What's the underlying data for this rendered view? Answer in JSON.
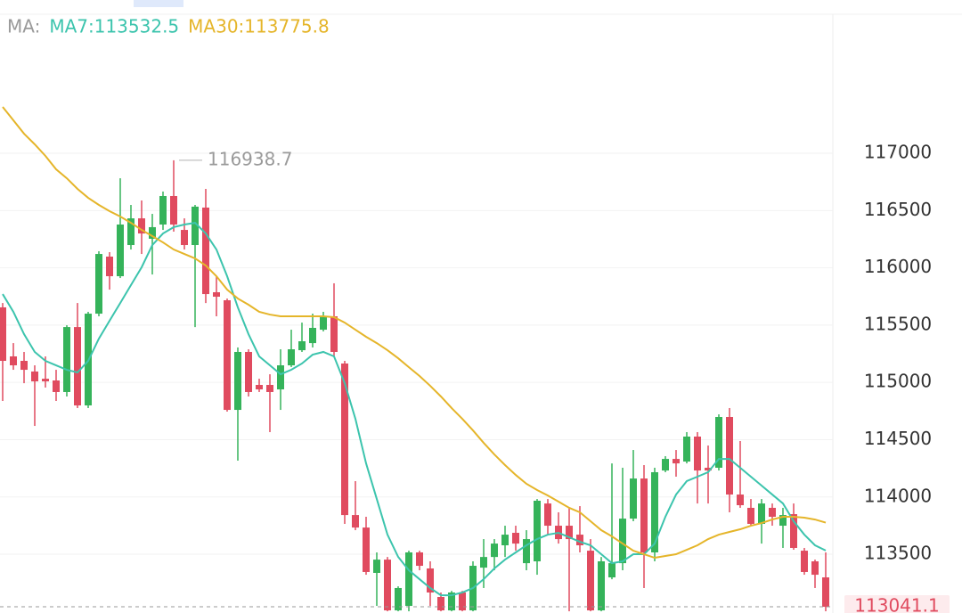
{
  "chart_data": {
    "type": "candlestick",
    "legend_title": "MA:",
    "up_color": "#35b35a",
    "down_color": "#e04b5f",
    "ylim": [
      112987,
      118338
    ],
    "yticks": [
      113500,
      114000,
      114500,
      115000,
      115500,
      116000,
      116500,
      117000
    ],
    "grid": true,
    "max_label": "116938.7",
    "last_price": 113041.1,
    "ohlc": {
      "open": [
        115655,
        115227,
        115188,
        115095,
        115032,
        115017,
        114916,
        115483,
        114799,
        115600,
        116098,
        115927,
        116199,
        116432,
        116254,
        116378,
        116627,
        116331,
        116199,
        116526,
        115787,
        115717,
        114760,
        115266,
        114978,
        114978,
        114939,
        115149,
        115281,
        115343,
        115460,
        115577,
        115165,
        113842,
        113733,
        113337,
        113453,
        113010,
        113049,
        113516,
        113376,
        113127,
        113010,
        113166,
        113010,
        113383,
        113476,
        113578,
        113687,
        113422,
        113438,
        113943,
        113749,
        113749,
        113671,
        113531,
        113010,
        113298,
        113422,
        113811,
        114161,
        113516,
        114231,
        114332,
        114309,
        114527,
        114255,
        114255,
        114698,
        114021,
        113905,
        113765,
        113905,
        113749,
        113850,
        113531,
        113438,
        113298
      ],
      "high": [
        115693,
        115343,
        115266,
        115149,
        115227,
        115110,
        115499,
        115693,
        115616,
        116145,
        116137,
        116782,
        116549,
        116588,
        116471,
        116666,
        116938.7,
        116432,
        116549,
        116689,
        115927,
        115732,
        115305,
        115289,
        115032,
        115071,
        115289,
        115460,
        115522,
        115600,
        115616,
        115865,
        115188,
        114138,
        113827,
        113516,
        113476,
        113220,
        113531,
        113531,
        113438,
        113166,
        113180,
        113180,
        113438,
        113632,
        113632,
        113749,
        113749,
        113710,
        113982,
        113982,
        113866,
        113905,
        113920,
        113632,
        113476,
        114293,
        114255,
        114410,
        114278,
        114255,
        114356,
        114410,
        114566,
        114566,
        114449,
        114721,
        114776,
        114488,
        113982,
        113982,
        113943,
        113905,
        113943,
        113555,
        113453,
        113516
      ],
      "low": [
        114838,
        115110,
        114993,
        114620,
        114955,
        114838,
        114877,
        114776,
        114776,
        115577,
        115810,
        115911,
        116160,
        116121,
        115942,
        116331,
        116316,
        116160,
        115483,
        115693,
        115577,
        114745,
        114317,
        114877,
        114916,
        114566,
        114760,
        115134,
        115266,
        115305,
        115445,
        115227,
        113765,
        113710,
        113321,
        113049,
        113002,
        113002,
        113002,
        113360,
        113049,
        113002,
        113002,
        113002,
        113002,
        113205,
        113360,
        113476,
        113531,
        113360,
        113321,
        113671,
        113593,
        113002,
        113516,
        113002,
        113002,
        113282,
        113360,
        113788,
        113205,
        113438,
        114216,
        114177,
        114293,
        113943,
        113943,
        114231,
        113866,
        113905,
        113749,
        113593,
        113749,
        113555,
        113539,
        113321,
        113205,
        113002
      ],
      "close": [
        115188,
        115149,
        115110,
        115009,
        115009,
        114916,
        115483,
        114799,
        115600,
        116121,
        115927,
        116378,
        116432,
        116300,
        116355,
        116627,
        116378,
        116199,
        116534,
        115771,
        115748,
        114760,
        115266,
        114916,
        114939,
        114916,
        115149,
        115289,
        115359,
        115476,
        115569,
        115266,
        113842,
        113733,
        113345,
        113453,
        113010,
        113205,
        113516,
        113399,
        113166,
        113010,
        113166,
        113010,
        113399,
        113476,
        113593,
        113671,
        113593,
        113632,
        113967,
        113749,
        113632,
        113632,
        113578,
        113010,
        113438,
        113422,
        113811,
        114161,
        113516,
        114216,
        114332,
        114293,
        114527,
        114231,
        114231,
        114698,
        114021,
        113928,
        113765,
        113943,
        113827,
        113842,
        113555,
        113345,
        113321,
        113041.1
      ]
    },
    "series": [
      {
        "name": "MA7:113532.5",
        "color": "#3cc4ad",
        "values": [
          115771,
          115616,
          115421,
          115266,
          115188,
          115149,
          115110,
          115087,
          115188,
          115382,
          115538,
          115693,
          115849,
          116005,
          116199,
          116300,
          116355,
          116378,
          116393,
          116300,
          116160,
          115927,
          115655,
          115421,
          115227,
          115149,
          115071,
          115110,
          115165,
          115242,
          115266,
          115227,
          114993,
          114682,
          114293,
          113982,
          113671,
          113477,
          113360,
          113282,
          113205,
          113142,
          113142,
          113166,
          113205,
          113282,
          113376,
          113453,
          113516,
          113578,
          113632,
          113671,
          113687,
          113648,
          113609,
          113578,
          113500,
          113422,
          113438,
          113500,
          113500,
          113593,
          113827,
          114021,
          114138,
          114177,
          114216,
          114332,
          114332,
          114255,
          114177,
          114099,
          114021,
          113943,
          113788,
          113671,
          113578,
          113532.5
        ]
      },
      {
        "name": "MA30:113775.8",
        "color": "#e5b52a",
        "values": [
          117405,
          117288,
          117171,
          117078,
          116977,
          116860,
          116782,
          116689,
          116611,
          116549,
          116495,
          116448,
          116393,
          116331,
          116277,
          116222,
          116160,
          116121,
          116082,
          116020,
          115927,
          115810,
          115732,
          115678,
          115616,
          115592,
          115577,
          115577,
          115577,
          115577,
          115577,
          115569,
          115522,
          115460,
          115398,
          115343,
          115281,
          115211,
          115133,
          115056,
          114970,
          114877,
          114776,
          114682,
          114581,
          114472,
          114371,
          114278,
          114192,
          114115,
          114060,
          114013,
          113959,
          113905,
          113866,
          113788,
          113710,
          113656,
          113593,
          113531,
          113500,
          113469,
          113485,
          113500,
          113539,
          113578,
          113632,
          113671,
          113695,
          113718,
          113749,
          113772,
          113803,
          113827,
          113827,
          113819,
          113803,
          113775.8
        ]
      }
    ]
  }
}
